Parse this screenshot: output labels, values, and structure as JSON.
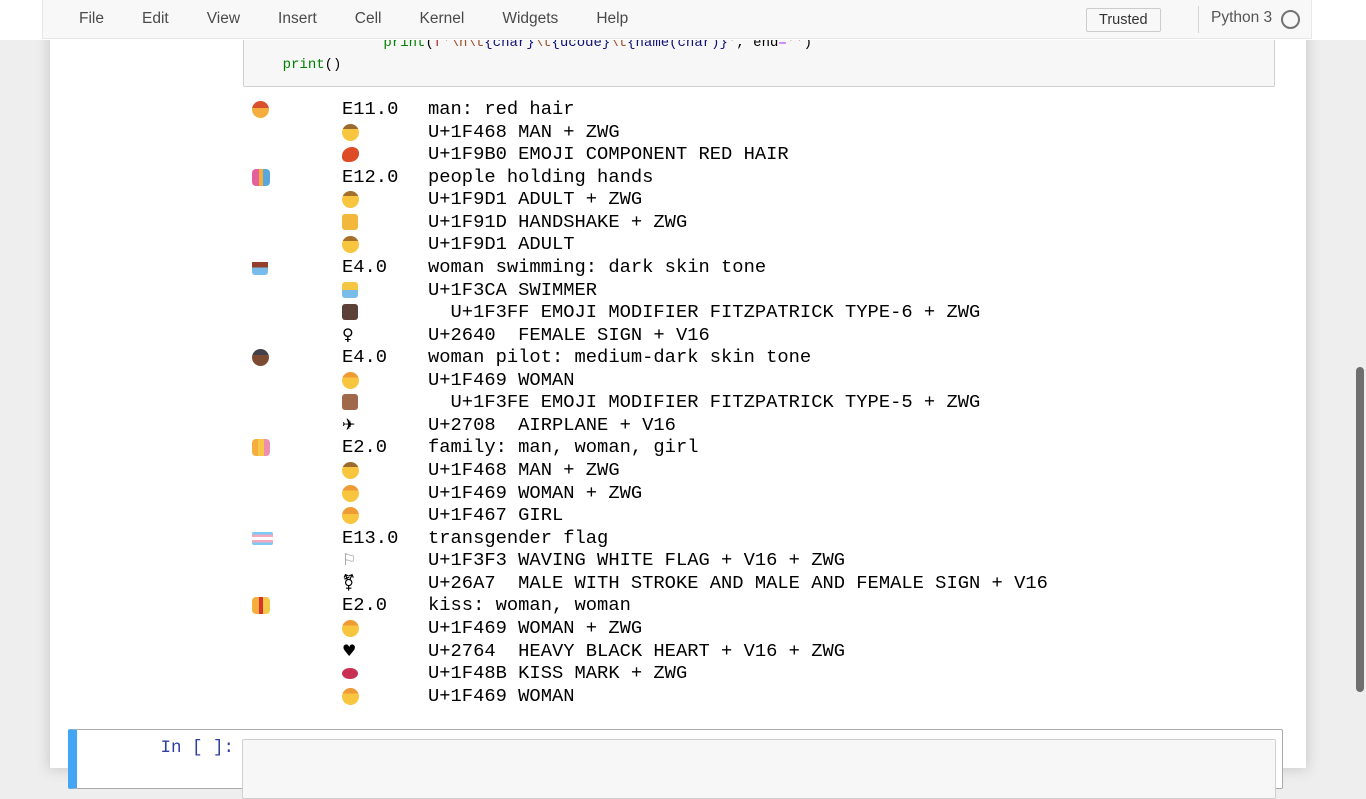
{
  "menubar": {
    "items": [
      "File",
      "Edit",
      "View",
      "Insert",
      "Cell",
      "Kernel",
      "Widgets",
      "Help"
    ],
    "trusted_label": "Trusted",
    "kernel_name": "Python 3",
    "kernel_indicator": "idle-circle-icon"
  },
  "theme": {
    "selected_cell_bar": "#42A5F5",
    "prompt_color": "#303F9F",
    "cell_background": "#f7f7f7",
    "menubar_background": "#f8f8f8"
  },
  "code_cell": {
    "lines": [
      {
        "tokens": [
          {
            "t": "                ",
            "c": "ws"
          },
          {
            "t": "print",
            "c": "builtin"
          },
          {
            "t": "(",
            "c": "p"
          },
          {
            "t": "f'",
            "c": "str"
          },
          {
            "t": "\\n\\t",
            "c": "esc"
          },
          {
            "t": "{char}",
            "c": "interp"
          },
          {
            "t": "\\t",
            "c": "esc"
          },
          {
            "t": "{ucode}",
            "c": "interp"
          },
          {
            "t": "\\t",
            "c": "esc"
          },
          {
            "t": "{name(char)}",
            "c": "interp"
          },
          {
            "t": "'",
            "c": "str"
          },
          {
            "t": ", ",
            "c": "p"
          },
          {
            "t": "end",
            "c": "p"
          },
          {
            "t": "=",
            "c": "op"
          },
          {
            "t": "''",
            "c": "str"
          },
          {
            "t": ")",
            "c": "p"
          }
        ]
      },
      {
        "tokens": [
          {
            "t": "    ",
            "c": "ws"
          },
          {
            "t": "print",
            "c": "builtin"
          },
          {
            "t": "()",
            "c": "p"
          }
        ]
      }
    ]
  },
  "output": {
    "lines": [
      {
        "version": "E11.0",
        "text": "man: red hair",
        "emoji": {
          "ch": "👨‍🦰",
          "cls": "face",
          "bg": "linear-gradient(180deg,#d8502c 40%,#f5ae3d 40%)"
        }
      },
      {
        "text": "U+1F468 MAN + ZWG",
        "emoji": {
          "ch": "👨",
          "cls": "face",
          "bg": "linear-gradient(180deg,#9a6a2e 30%,#f8c53f 30%)"
        }
      },
      {
        "text": "U+1F9B0 EMOJI COMPONENT RED HAIR",
        "emoji": {
          "ch": "🦰",
          "cls": "blob",
          "bg": "#dd4b27"
        }
      },
      {
        "version": "E12.0",
        "text": "people holding hands",
        "emoji": {
          "ch": "🧑‍🤝‍🧑",
          "cls": "group",
          "bg": "linear-gradient(90deg,#e5619e 38%,#f5b03c 38% 62%,#5aa7dd 62%)"
        }
      },
      {
        "text": "U+1F9D1 ADULT + ZWG",
        "emoji": {
          "ch": "🧑",
          "cls": "face",
          "bg": "linear-gradient(180deg,#a5702c 30%,#f8c53f 30%)"
        }
      },
      {
        "text": "U+1F91D HANDSHAKE + ZWG",
        "emoji": {
          "ch": "🤝",
          "cls": "square",
          "bg": "#f3b73c"
        }
      },
      {
        "text": "U+1F9D1 ADULT",
        "emoji": {
          "ch": "🧑",
          "cls": "face",
          "bg": "linear-gradient(180deg,#a5702c 30%,#f8c53f 30%)"
        }
      },
      {
        "version": "E4.0",
        "text": "woman swimming: dark skin tone",
        "emoji": {
          "ch": "🏊🏿‍♀️",
          "cls": "square",
          "bg": "linear-gradient(180deg,#ffffff 0 18%,#93402a 18% 52%,#79bce9 52%)"
        }
      },
      {
        "text": "U+1F3CA SWIMMER",
        "emoji": {
          "ch": "🏊",
          "cls": "square",
          "bg": "linear-gradient(180deg,#f5c544 0 50%,#79bce9 50%)"
        }
      },
      {
        "text": "  U+1F3FF EMOJI MODIFIER FITZPATRICK TYPE-6 + ZWG",
        "emoji": {
          "ch": "🏿",
          "cls": "square",
          "bg": "#5d4037"
        }
      },
      {
        "text": "U+2640  FEMALE SIGN + V16",
        "emoji": {
          "ch": "♀",
          "cls": "sym",
          "glyph": "♀",
          "color": "#000000"
        }
      },
      {
        "version": "E4.0",
        "text": "woman pilot: medium-dark skin tone",
        "emoji": {
          "ch": "👩🏾‍✈️",
          "cls": "face",
          "bg": "linear-gradient(180deg,#41414b 35%,#7d4b31 35%)"
        }
      },
      {
        "text": "U+1F469 WOMAN",
        "emoji": {
          "ch": "👩",
          "cls": "face",
          "bg": "linear-gradient(180deg,#ee9b35 32%,#f8c53f 32%)"
        }
      },
      {
        "text": "  U+1F3FE EMOJI MODIFIER FITZPATRICK TYPE-5 + ZWG",
        "emoji": {
          "ch": "🏾",
          "cls": "square",
          "bg": "#a06a4a"
        }
      },
      {
        "text": "U+2708  AIRPLANE + V16",
        "emoji": {
          "ch": "✈",
          "cls": "sym",
          "glyph": "✈",
          "color": "#000000"
        }
      },
      {
        "version": "E2.0",
        "text": "family: man, woman, girl",
        "emoji": {
          "ch": "👨‍👩‍👧",
          "cls": "group",
          "bg": "linear-gradient(90deg,#f5ae3d 33%,#f6c84a 33% 66%,#ef8fb0 66%)"
        }
      },
      {
        "text": "U+1F468 MAN + ZWG",
        "emoji": {
          "ch": "👨",
          "cls": "face",
          "bg": "linear-gradient(180deg,#9a6a2e 30%,#f8c53f 30%)"
        }
      },
      {
        "text": "U+1F469 WOMAN + ZWG",
        "emoji": {
          "ch": "👩",
          "cls": "face",
          "bg": "linear-gradient(180deg,#ee9b35 32%,#f8c53f 32%)"
        }
      },
      {
        "text": "U+1F467 GIRL",
        "emoji": {
          "ch": "👧",
          "cls": "face",
          "bg": "linear-gradient(180deg,#ee9b35 42%,#f8c53f 42%)"
        }
      },
      {
        "version": "E13.0",
        "text": "transgender flag",
        "emoji": {
          "ch": "🏳️‍⚧️",
          "cls": "flag",
          "bg": "linear-gradient(180deg,#7acbf4 0 20%,#f3a8c0 20% 40%,#ffffff 40% 60%,#f3a8c0 60% 80%,#7acbf4 80%)"
        }
      },
      {
        "text": "U+1F3F3 WAVING WHITE FLAG + V16 + ZWG",
        "emoji": {
          "ch": "🏳",
          "cls": "sym",
          "glyph": "⚐",
          "color": "#8d8d8d"
        }
      },
      {
        "text": "U+26A7  MALE WITH STROKE AND MALE AND FEMALE SIGN + V16",
        "emoji": {
          "ch": "⚧",
          "cls": "sym",
          "glyph": "⚧",
          "color": "#000000"
        }
      },
      {
        "version": "E2.0",
        "text": "kiss: woman, woman",
        "emoji": {
          "ch": "👩‍❤️‍💋‍👩",
          "cls": "group",
          "bg": "linear-gradient(90deg,#f5ae3d 40%,#d8332c 40% 60%,#f6c84a 60%)"
        }
      },
      {
        "text": "U+1F469 WOMAN + ZWG",
        "emoji": {
          "ch": "👩",
          "cls": "face",
          "bg": "linear-gradient(180deg,#ee9b35 32%,#f8c53f 32%)"
        }
      },
      {
        "text": "U+2764  HEAVY BLACK HEART + V16 + ZWG",
        "emoji": {
          "ch": "❤",
          "cls": "sym",
          "glyph": "♥",
          "color": "#000000"
        }
      },
      {
        "text": "U+1F48B KISS MARK + ZWG",
        "emoji": {
          "ch": "💋",
          "cls": "lips",
          "bg": "#c92f52"
        }
      },
      {
        "text": "U+1F469 WOMAN",
        "emoji": {
          "ch": "👩",
          "cls": "face",
          "bg": "linear-gradient(180deg,#ee9b35 32%,#f8c53f 32%)"
        }
      }
    ]
  },
  "empty_cell": {
    "prompt": "In [ ]:",
    "value": "",
    "selected": true
  }
}
